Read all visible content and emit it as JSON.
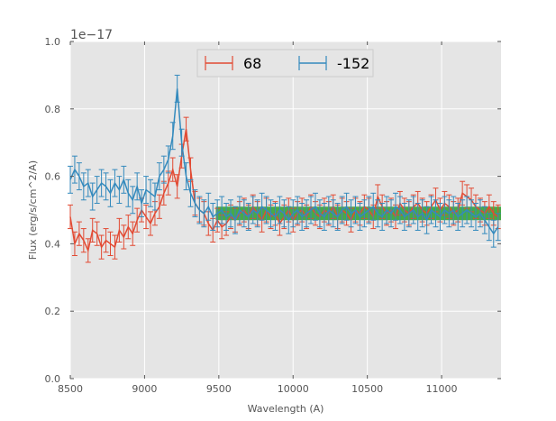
{
  "chart_data": {
    "type": "line",
    "xlabel": "Wavelength (A)",
    "ylabel": "Flux (erg/s/cm^2/A)",
    "y_offset_label": "1e−17",
    "xlim": [
      8500,
      11400
    ],
    "ylim": [
      0.0,
      1.0
    ],
    "x_ticks": [
      8500,
      9000,
      9500,
      10000,
      10500,
      11000
    ],
    "x_tick_labels": [
      "8500",
      "9000",
      "9500",
      "10000",
      "10500",
      "11000"
    ],
    "y_ticks": [
      0.0,
      0.2,
      0.4,
      0.6,
      0.8,
      1.0
    ],
    "y_tick_labels": [
      "0.0",
      "0.2",
      "0.4",
      "0.6",
      "0.8",
      "1.0"
    ],
    "grid": true,
    "legend_position": "top-center",
    "band": {
      "x": [
        9480,
        11400
      ],
      "y": [
        0.47,
        0.51
      ],
      "color": "#2ca02c"
    },
    "series": [
      {
        "name": "68",
        "color": "#e24a33",
        "error_bars": true,
        "x": [
          8500,
          8530,
          8560,
          8590,
          8620,
          8650,
          8680,
          8710,
          8740,
          8770,
          8800,
          8830,
          8860,
          8890,
          8920,
          8950,
          8980,
          9010,
          9040,
          9070,
          9100,
          9130,
          9160,
          9190,
          9220,
          9250,
          9280,
          9310,
          9340,
          9370,
          9400,
          9430,
          9460,
          9490,
          9520,
          9550,
          9580,
          9610,
          9640,
          9670,
          9700,
          9730,
          9760,
          9790,
          9820,
          9850,
          9880,
          9910,
          9940,
          9970,
          10000,
          10030,
          10060,
          10090,
          10120,
          10150,
          10180,
          10210,
          10240,
          10270,
          10300,
          10330,
          10360,
          10390,
          10420,
          10450,
          10480,
          10510,
          10540,
          10570,
          10600,
          10630,
          10660,
          10690,
          10720,
          10750,
          10780,
          10810,
          10840,
          10870,
          10900,
          10930,
          10960,
          10990,
          11020,
          11050,
          11080,
          11110,
          11140,
          11170,
          11200,
          11230,
          11260,
          11290,
          11320,
          11350,
          11380
        ],
        "y": [
          0.48,
          0.4,
          0.43,
          0.41,
          0.38,
          0.44,
          0.43,
          0.39,
          0.41,
          0.4,
          0.39,
          0.44,
          0.42,
          0.45,
          0.43,
          0.47,
          0.5,
          0.48,
          0.46,
          0.49,
          0.51,
          0.55,
          0.58,
          0.62,
          0.57,
          0.66,
          0.74,
          0.62,
          0.52,
          0.5,
          0.49,
          0.46,
          0.44,
          0.47,
          0.45,
          0.46,
          0.48,
          0.47,
          0.49,
          0.5,
          0.48,
          0.51,
          0.49,
          0.47,
          0.5,
          0.48,
          0.49,
          0.46,
          0.48,
          0.5,
          0.47,
          0.49,
          0.5,
          0.48,
          0.51,
          0.49,
          0.48,
          0.5,
          0.49,
          0.51,
          0.48,
          0.5,
          0.49,
          0.47,
          0.5,
          0.49,
          0.51,
          0.5,
          0.48,
          0.54,
          0.51,
          0.49,
          0.5,
          0.48,
          0.52,
          0.5,
          0.49,
          0.51,
          0.52,
          0.5,
          0.49,
          0.51,
          0.53,
          0.5,
          0.52,
          0.51,
          0.49,
          0.5,
          0.55,
          0.54,
          0.53,
          0.51,
          0.5,
          0.49,
          0.51,
          0.49,
          0.48
        ],
        "yerr": 0.035
      },
      {
        "name": "-152",
        "color": "#348abd",
        "error_bars": true,
        "x": [
          8500,
          8530,
          8560,
          8590,
          8620,
          8650,
          8680,
          8710,
          8740,
          8770,
          8800,
          8830,
          8860,
          8890,
          8920,
          8950,
          8980,
          9010,
          9040,
          9070,
          9100,
          9130,
          9160,
          9190,
          9220,
          9250,
          9280,
          9310,
          9340,
          9370,
          9400,
          9430,
          9460,
          9490,
          9520,
          9550,
          9580,
          9610,
          9640,
          9670,
          9700,
          9730,
          9760,
          9790,
          9820,
          9850,
          9880,
          9910,
          9940,
          9970,
          10000,
          10030,
          10060,
          10090,
          10120,
          10150,
          10180,
          10210,
          10240,
          10270,
          10300,
          10330,
          10360,
          10390,
          10420,
          10450,
          10480,
          10510,
          10540,
          10570,
          10600,
          10630,
          10660,
          10690,
          10720,
          10750,
          10780,
          10810,
          10840,
          10870,
          10900,
          10930,
          10960,
          10990,
          11020,
          11050,
          11080,
          11110,
          11140,
          11170,
          11200,
          11230,
          11260,
          11290,
          11320,
          11350,
          11380
        ],
        "y": [
          0.59,
          0.62,
          0.6,
          0.57,
          0.58,
          0.54,
          0.56,
          0.58,
          0.57,
          0.55,
          0.58,
          0.56,
          0.59,
          0.55,
          0.53,
          0.57,
          0.52,
          0.56,
          0.55,
          0.54,
          0.6,
          0.62,
          0.65,
          0.72,
          0.86,
          0.7,
          0.6,
          0.55,
          0.52,
          0.5,
          0.49,
          0.51,
          0.48,
          0.49,
          0.5,
          0.48,
          0.49,
          0.47,
          0.5,
          0.49,
          0.48,
          0.5,
          0.49,
          0.51,
          0.5,
          0.49,
          0.48,
          0.5,
          0.49,
          0.47,
          0.49,
          0.5,
          0.48,
          0.49,
          0.5,
          0.51,
          0.49,
          0.48,
          0.5,
          0.49,
          0.48,
          0.5,
          0.51,
          0.49,
          0.5,
          0.48,
          0.49,
          0.5,
          0.51,
          0.49,
          0.48,
          0.5,
          0.49,
          0.51,
          0.5,
          0.48,
          0.49,
          0.5,
          0.48,
          0.49,
          0.47,
          0.5,
          0.49,
          0.48,
          0.5,
          0.49,
          0.5,
          0.48,
          0.49,
          0.5,
          0.49,
          0.48,
          0.49,
          0.47,
          0.45,
          0.43,
          0.45
        ],
        "yerr": 0.04
      }
    ]
  }
}
